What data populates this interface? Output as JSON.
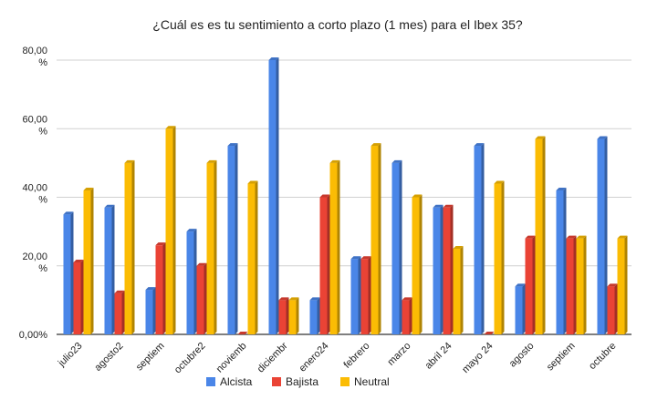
{
  "chart_data": {
    "type": "bar",
    "title": "¿Cuál es es tu sentimiento a corto plazo (1 mes) para el Ibex 35?",
    "categories": [
      "julio23",
      "agosto2",
      "septiem",
      "octubre2",
      "noviemb",
      "diciembr",
      "enero24",
      "febrero",
      "marzo",
      "abril 24",
      "mayo 24",
      "agosto",
      "septiem",
      "octubre"
    ],
    "series": [
      {
        "name": "Alcista",
        "color": "#4a86e8",
        "values": [
          35,
          37,
          13,
          30,
          55,
          80,
          10,
          22,
          50,
          37,
          55,
          14,
          42,
          57
        ]
      },
      {
        "name": "Bajista",
        "color": "#ea4335",
        "values": [
          21,
          12,
          26,
          20,
          0,
          10,
          40,
          22,
          10,
          37,
          0,
          28,
          28,
          14
        ]
      },
      {
        "name": "Neutral",
        "color": "#fbbc04",
        "values": [
          42,
          50,
          60,
          50,
          44,
          10,
          50,
          55,
          40,
          25,
          44,
          57,
          28,
          28
        ]
      }
    ],
    "yticks": [
      {
        "value": 0,
        "line1": "0,00%",
        "line2": ""
      },
      {
        "value": 20,
        "line1": "20,00",
        "line2": "%"
      },
      {
        "value": 40,
        "line1": "40,00",
        "line2": "%"
      },
      {
        "value": 60,
        "line1": "60,00",
        "line2": "%"
      },
      {
        "value": 80,
        "line1": "80,00",
        "line2": "%"
      }
    ],
    "ylim": [
      0,
      80
    ],
    "grid": true,
    "legend_position": "bottom",
    "style": "3d-bar"
  }
}
